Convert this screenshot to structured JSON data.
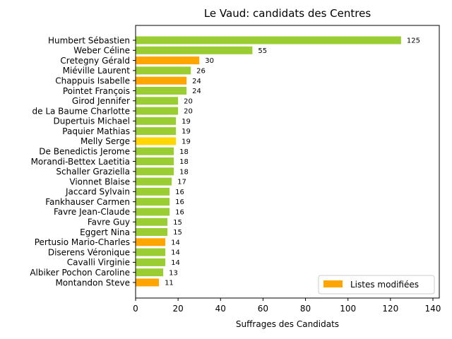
{
  "chart_data": {
    "type": "bar",
    "orientation": "horizontal",
    "title": "Le Vaud: candidats des Centres",
    "xlabel": "Suffrages des Candidats",
    "ylabel": "",
    "xlim": [
      0,
      143
    ],
    "xticks": [
      0,
      20,
      40,
      60,
      80,
      100,
      120,
      140
    ],
    "grid": false,
    "legend": {
      "placement": "lower-right",
      "entries": [
        {
          "label": "Listes modifiées",
          "color": "#ffa500"
        }
      ]
    },
    "categories": [
      "Humbert Sébastien",
      "Weber Céline",
      "Cretegny Gérald",
      "Miéville Laurent",
      "Chappuis Isabelle",
      "Pointet François",
      "Girod Jennifer",
      "de La Baume Charlotte",
      "Dupertuis Michael",
      "Paquier Mathias",
      "Melly Serge",
      "De Benedictis Jerome",
      "Morandi-Bettex Laetitia",
      "Schaller Graziella",
      "Vionnet Blaise",
      "Jaccard Sylvain",
      "Fankhauser Carmen",
      "Favre Jean-Claude",
      "Favre Guy",
      "Eggert Nina",
      "Pertusio Mario-Charles",
      "Diserens Véronique",
      "Cavalli Virginie",
      "Albiker Pochon Caroline",
      "Montandon Steve"
    ],
    "values": [
      125,
      55,
      30,
      26,
      24,
      24,
      20,
      20,
      19,
      19,
      19,
      18,
      18,
      18,
      17,
      16,
      16,
      16,
      15,
      15,
      14,
      14,
      14,
      13,
      11
    ],
    "colors": [
      "#9acd32",
      "#9acd32",
      "#ffa500",
      "#9acd32",
      "#ffa500",
      "#9acd32",
      "#9acd32",
      "#9acd32",
      "#9acd32",
      "#9acd32",
      "#ffd700",
      "#9acd32",
      "#9acd32",
      "#9acd32",
      "#9acd32",
      "#9acd32",
      "#9acd32",
      "#9acd32",
      "#9acd32",
      "#9acd32",
      "#ffa500",
      "#9acd32",
      "#9acd32",
      "#9acd32",
      "#ffa500"
    ]
  }
}
